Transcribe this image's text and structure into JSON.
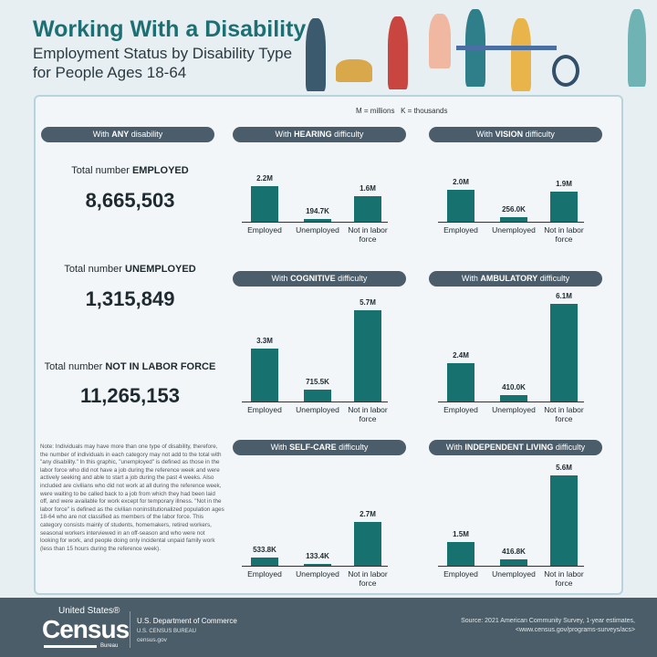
{
  "header": {
    "title": "Working With a Disability",
    "subtitle": "Employment Status by Disability Type for People Ages 18-64"
  },
  "legend": "M = millions   K = thousands",
  "any": {
    "pill_pre": "With ",
    "pill_bold": "ANY",
    "pill_post": " disability",
    "employed_pre": "Total number ",
    "employed_bold": "EMPLOYED",
    "employed_value": "8,665,503",
    "unemployed_pre": "Total number ",
    "unemployed_bold": "UNEMPLOYED",
    "unemployed_value": "1,315,849",
    "nilf_pre": "Total number ",
    "nilf_bold": "NOT IN LABOR FORCE",
    "nilf_value": "11,265,153"
  },
  "note": "Note: Individuals may have more than one type of disability, therefore, the number of individuals in each category may not add to the total with \"any disability.\" In this graphic, \"unemployed\" is defined as those in the labor force who did not have a job during the reference week and were actively seeking and able to start a job during the past 4 weeks. Also included are civilians who did not work at all during the reference week, were waiting to be called back to a job from which they had been laid off, and were available for work except for temporary illness. \"Not in the labor force\" is defined as the civilian noninstitutionalized population ages 18-64 who are not classified as members of the labor force. This category consists mainly of students, homemakers, retired workers, seasonal workers interviewed in an off-season and who were not looking for work, and people doing only incidental unpaid family work (less than 15 hours during the reference week).",
  "chart_data": [
    {
      "type": "bar",
      "title_pre": "With ",
      "title_bold": "HEARING",
      "title_post": " difficulty",
      "categories": [
        "Employed",
        "Unemployed",
        "Not in labor force"
      ],
      "values": [
        2.2,
        0.1947,
        1.6
      ],
      "labels": [
        "2.2M",
        "194.7K",
        "1.6M"
      ]
    },
    {
      "type": "bar",
      "title_pre": "With ",
      "title_bold": "VISION",
      "title_post": " difficulty",
      "categories": [
        "Employed",
        "Unemployed",
        "Not in labor force"
      ],
      "values": [
        2.0,
        0.256,
        1.9
      ],
      "labels": [
        "2.0M",
        "256.0K",
        "1.9M"
      ]
    },
    {
      "type": "bar",
      "title_pre": "With ",
      "title_bold": "COGNITIVE",
      "title_post": " difficulty",
      "categories": [
        "Employed",
        "Unemployed",
        "Not in labor force"
      ],
      "values": [
        3.3,
        0.7155,
        5.7
      ],
      "labels": [
        "3.3M",
        "715.5K",
        "5.7M"
      ]
    },
    {
      "type": "bar",
      "title_pre": "With ",
      "title_bold": "AMBULATORY",
      "title_post": " difficulty",
      "categories": [
        "Employed",
        "Unemployed",
        "Not in labor force"
      ],
      "values": [
        2.4,
        0.41,
        6.1
      ],
      "labels": [
        "2.4M",
        "410.0K",
        "6.1M"
      ]
    },
    {
      "type": "bar",
      "title_pre": "With ",
      "title_bold": "SELF-CARE",
      "title_post": " difficulty",
      "categories": [
        "Employed",
        "Unemployed",
        "Not in labor force"
      ],
      "values": [
        0.5338,
        0.1334,
        2.7
      ],
      "labels": [
        "533.8K",
        "133.4K",
        "2.7M"
      ]
    },
    {
      "type": "bar",
      "title_pre": "With ",
      "title_bold": "INDEPENDENT LIVING",
      "title_post": " difficulty",
      "categories": [
        "Employed",
        "Unemployed",
        "Not in labor force"
      ],
      "values": [
        1.5,
        0.4168,
        5.6
      ],
      "labels": [
        "1.5M",
        "416.8K",
        "5.6M"
      ]
    }
  ],
  "colors": {
    "bar": "#16716f",
    "title": "#1c6f72",
    "pill": "#4b5d6a",
    "footer": "#4b5d68"
  },
  "footer": {
    "logo_top": "United States®",
    "logo": "Census",
    "logo_bureau": "Bureau",
    "dept": "U.S. Department of Commerce",
    "bureau": "U.S. CENSUS BUREAU",
    "site": "census.gov",
    "source_line1": "Source: 2021 American Community Survey, 1-year estimates,",
    "source_line2": "<www.census.gov/programs-surveys/acs>"
  }
}
